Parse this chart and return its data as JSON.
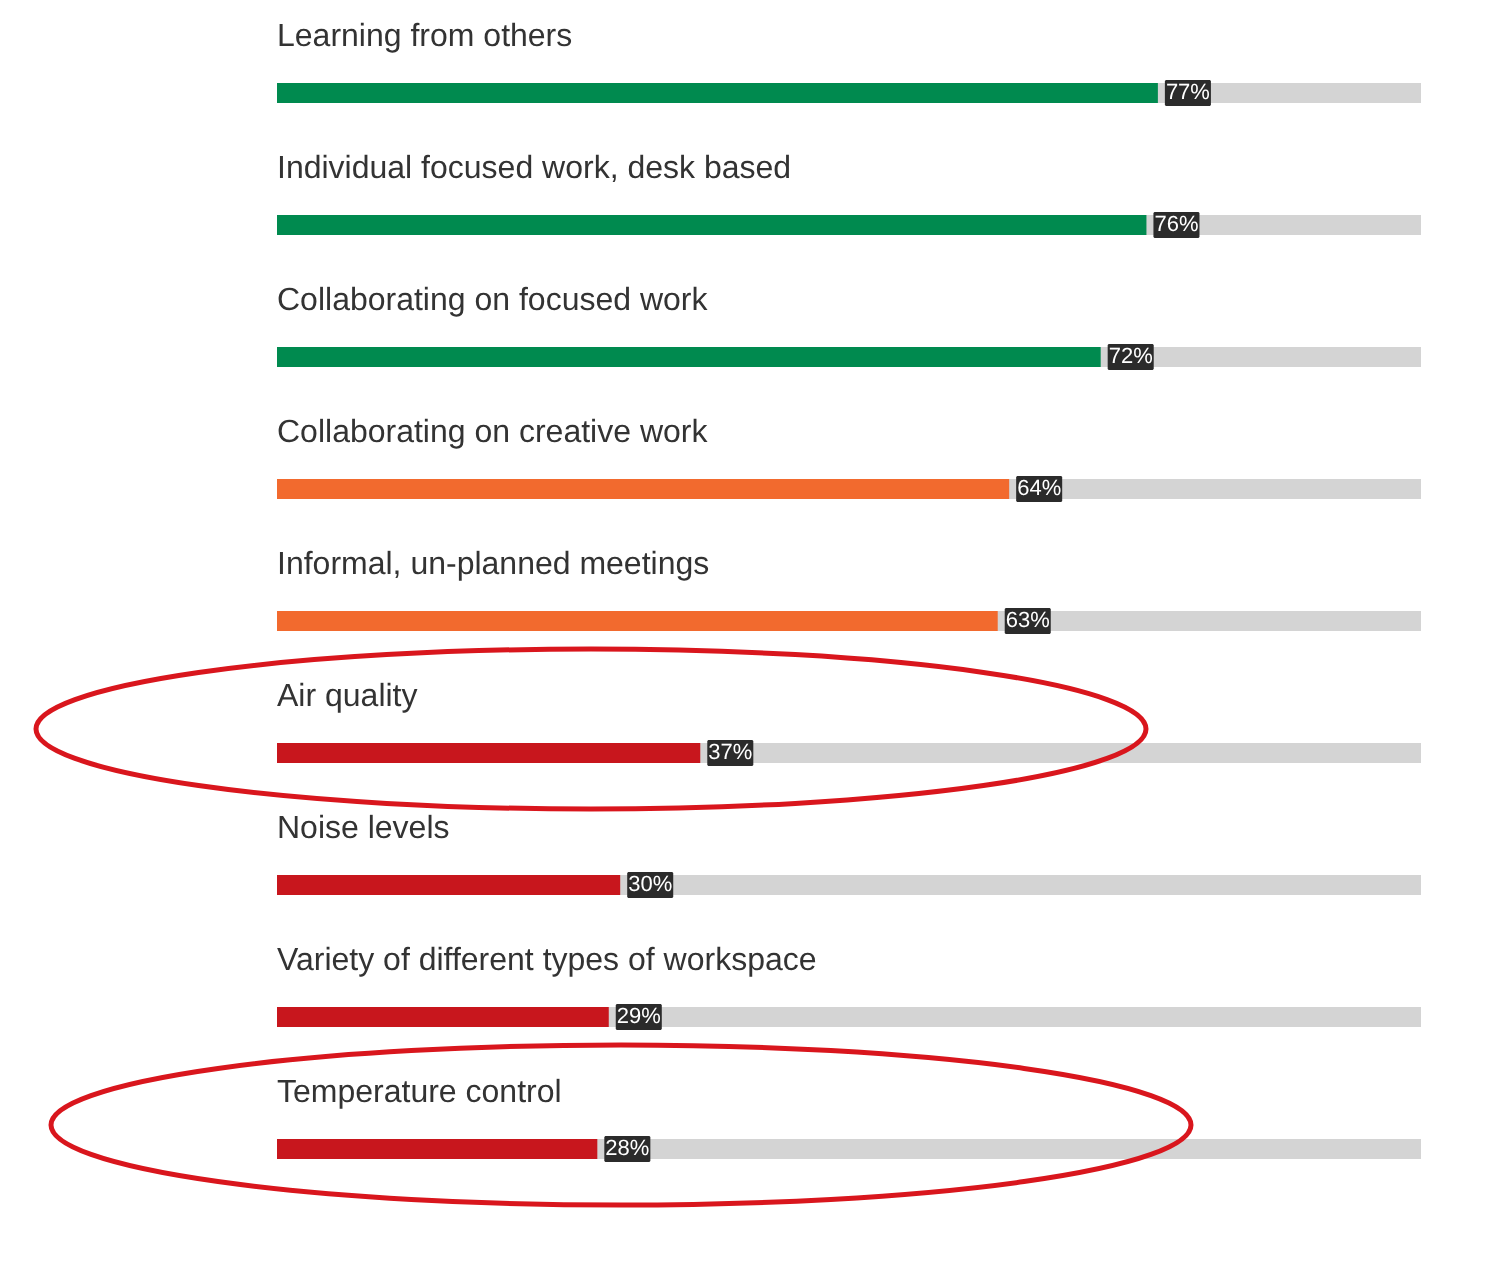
{
  "chart_data": {
    "type": "bar",
    "orientation": "horizontal",
    "xlim": [
      0,
      100
    ],
    "categories": [
      "Learning from others",
      "Individual focused work, desk based",
      "Collaborating on focused work",
      "Collaborating on creative work",
      "Informal, un-planned meetings",
      "Air quality",
      "Noise levels",
      "Variety of different types of workspace",
      "Temperature control"
    ],
    "series": [
      {
        "values": [
          77,
          76,
          72,
          64,
          63,
          37,
          30,
          29,
          28
        ],
        "colors": [
          "#008a4f",
          "#008a4f",
          "#008a4f",
          "#f26a2e",
          "#f26a2e",
          "#c8161d",
          "#c8161d",
          "#c8161d",
          "#c8161d"
        ],
        "value_labels": [
          "77%",
          "76%",
          "72%",
          "64%",
          "63%",
          "37%",
          "30%",
          "29%",
          "28%"
        ]
      }
    ]
  }
}
